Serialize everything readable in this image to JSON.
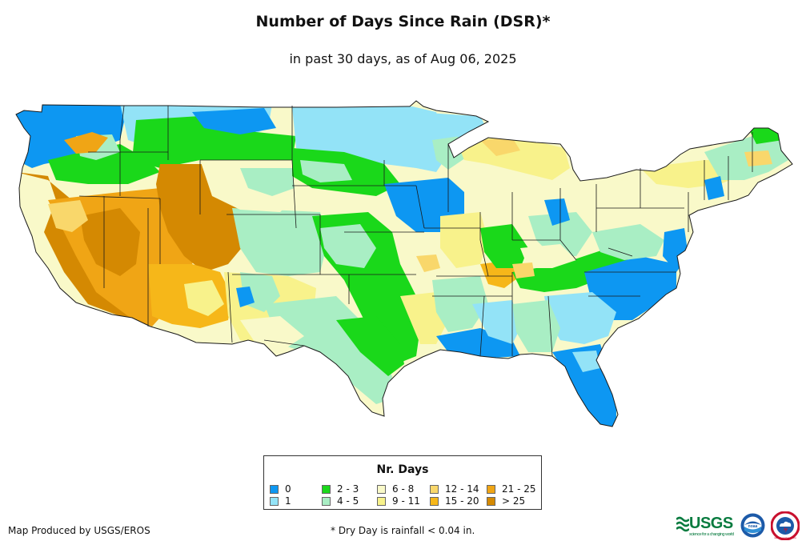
{
  "title": "Number of Days Since Rain (DSR)*",
  "subtitle": "in past 30 days, as of Aug 06, 2025",
  "legend": {
    "title": "Nr. Days",
    "items": [
      {
        "label": "0",
        "color": "#0d97f2"
      },
      {
        "label": "1",
        "color": "#93e3f7"
      },
      {
        "label": "2 - 3",
        "color": "#1ad81a"
      },
      {
        "label": "4 - 5",
        "color": "#a9eec4"
      },
      {
        "label": "6 - 8",
        "color": "#f9f9c9"
      },
      {
        "label": "9 - 11",
        "color": "#f8f28b"
      },
      {
        "label": "12 - 14",
        "color": "#f9d76b"
      },
      {
        "label": "15 - 20",
        "color": "#f6b719"
      },
      {
        "label": "21 - 25",
        "color": "#f0a515"
      },
      {
        "label": "> 25",
        "color": "#d48902"
      }
    ]
  },
  "footer": {
    "credit": "Map Produced by USGS/EROS",
    "note": "* Dry Day is rainfall < 0.04 in."
  },
  "logos": {
    "usgs": "USGS",
    "usgs_tagline": "science for a changing world",
    "noaa": "noaa",
    "nws": "national weather service"
  }
}
